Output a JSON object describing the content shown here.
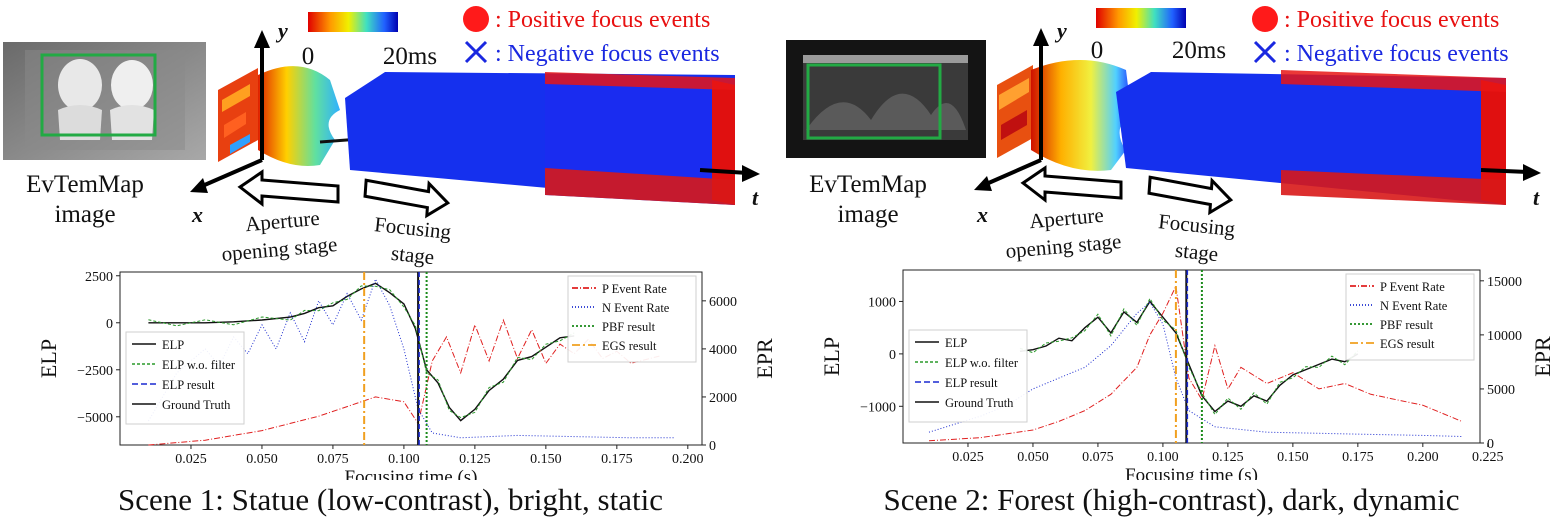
{
  "legend_top": {
    "positive": ": Positive focus events",
    "negative": ": Negative focus events",
    "colorbar_min": "0",
    "colorbar_max": "20ms",
    "pos_color": "#ff0000",
    "neg_color": "#1020e0"
  },
  "diagram": {
    "axis_y": "y",
    "axis_x": "x",
    "axis_t": "t",
    "evtemmap_label_1": "EvTemMap",
    "evtemmap_label_2": "image",
    "aperture_label_1": "Aperture",
    "aperture_label_2": "opening stage",
    "focusing_label_1": "Focusing",
    "focusing_label_2": "stage"
  },
  "scenes": [
    {
      "caption": "Scene 1: Statue (low-contrast), bright, static",
      "chart_data": {
        "type": "line",
        "xlabel": "Focusing time (s)",
        "ylabel_left": "ELP",
        "ylabel_right": "EPR",
        "xlim": [
          0.0,
          0.205
        ],
        "ylim_left": [
          -6500,
          2700
        ],
        "ylim_right": [
          0,
          7200
        ],
        "xticks": [
          "0.025",
          "0.050",
          "0.075",
          "0.100",
          "0.125",
          "0.150",
          "0.175",
          "0.200"
        ],
        "yticks_left": [
          "2500",
          "0",
          "−2500",
          "−5000"
        ],
        "yticks_right": [
          "6000",
          "4000",
          "2000",
          "0"
        ],
        "legend_left": [
          "ELP",
          "ELP w.o. filter",
          "ELP result",
          "Ground Truth"
        ],
        "legend_right": [
          "P Event Rate",
          "N Event Rate",
          "PBF result",
          "EGS result"
        ],
        "elp_result_x": 0.105,
        "ground_truth_x": 0.105,
        "pbf_result_x": 0.108,
        "egs_result_x": 0.086,
        "series": [
          {
            "name": "ELP",
            "x": [
              0.01,
              0.02,
              0.03,
              0.04,
              0.05,
              0.06,
              0.065,
              0.07,
              0.075,
              0.08,
              0.085,
              0.09,
              0.095,
              0.1,
              0.104,
              0.108,
              0.112,
              0.116,
              0.12,
              0.125,
              0.13,
              0.135,
              0.14,
              0.145,
              0.15,
              0.155,
              0.16
            ],
            "y": [
              0,
              0,
              0,
              50,
              150,
              300,
              500,
              800,
              900,
              1400,
              1800,
              2100,
              1600,
              1000,
              -300,
              -2500,
              -3200,
              -4500,
              -5200,
              -4600,
              -3600,
              -3000,
              -2000,
              -1800,
              -1300,
              -800,
              -700
            ]
          },
          {
            "name": "P Event Rate",
            "x": [
              0.01,
              0.03,
              0.05,
              0.06,
              0.07,
              0.08,
              0.09,
              0.1,
              0.105,
              0.11,
              0.115,
              0.12,
              0.125,
              0.13,
              0.135,
              0.14,
              0.145,
              0.15,
              0.155,
              0.16,
              0.165,
              0.17,
              0.175,
              0.18,
              0.19
            ],
            "y": [
              0,
              200,
              600,
              900,
              1200,
              1600,
              2000,
              1800,
              900,
              3500,
              4500,
              3000,
              5000,
              3500,
              5200,
              3600,
              4800,
              3400,
              4200,
              3800,
              4400,
              3600,
              3900,
              3400,
              3700
            ]
          },
          {
            "name": "N Event Rate",
            "x": [
              0.01,
              0.02,
              0.03,
              0.035,
              0.04,
              0.045,
              0.05,
              0.055,
              0.06,
              0.065,
              0.07,
              0.075,
              0.08,
              0.085,
              0.09,
              0.095,
              0.1,
              0.105,
              0.11,
              0.12,
              0.14,
              0.16,
              0.18,
              0.195
            ],
            "y": [
              1000,
              3000,
              4000,
              3300,
              4500,
              3800,
              5000,
              4000,
              5500,
              4300,
              6000,
              5000,
              6300,
              5200,
              6900,
              5800,
              4000,
              1500,
              500,
              300,
              400,
              350,
              300,
              300
            ]
          }
        ]
      }
    },
    {
      "caption": "Scene 2: Forest (high-contrast), dark, dynamic",
      "chart_data": {
        "type": "line",
        "xlabel": "Focusing time (s)",
        "ylabel_left": "ELP",
        "ylabel_right": "EPR",
        "xlim": [
          0.0,
          0.222
        ],
        "ylim_left": [
          -1700,
          1600
        ],
        "ylim_right": [
          0,
          16000
        ],
        "xticks": [
          "0.025",
          "0.050",
          "0.075",
          "0.100",
          "0.125",
          "0.150",
          "0.175",
          "0.200",
          "0.225"
        ],
        "yticks_left": [
          "1000",
          "0",
          "−1000"
        ],
        "yticks_right": [
          "15000",
          "10000",
          "5000",
          "0"
        ],
        "legend_left": [
          "ELP",
          "ELP w.o. filter",
          "ELP result",
          "Ground Truth"
        ],
        "legend_right": [
          "P Event Rate",
          "N Event Rate",
          "PBF result",
          "EGS result"
        ],
        "elp_result_x": 0.109,
        "ground_truth_x": 0.109,
        "pbf_result_x": 0.115,
        "egs_result_x": 0.105,
        "series": [
          {
            "name": "ELP",
            "x": [
              0.045,
              0.05,
              0.055,
              0.06,
              0.065,
              0.07,
              0.075,
              0.08,
              0.085,
              0.09,
              0.095,
              0.1,
              0.105,
              0.11,
              0.115,
              0.12,
              0.125,
              0.13,
              0.135,
              0.14,
              0.145,
              0.15,
              0.155,
              0.16,
              0.165,
              0.17,
              0.175
            ],
            "y": [
              50,
              80,
              150,
              300,
              250,
              500,
              700,
              400,
              800,
              600,
              1000,
              700,
              400,
              -200,
              -800,
              -1100,
              -900,
              -1000,
              -800,
              -900,
              -600,
              -400,
              -300,
              -200,
              -100,
              -150,
              0
            ]
          },
          {
            "name": "P Event Rate",
            "x": [
              0.01,
              0.03,
              0.05,
              0.06,
              0.07,
              0.08,
              0.09,
              0.095,
              0.1,
              0.105,
              0.11,
              0.115,
              0.12,
              0.125,
              0.13,
              0.14,
              0.15,
              0.16,
              0.17,
              0.18,
              0.19,
              0.2,
              0.215
            ],
            "y": [
              200,
              500,
              1200,
              2000,
              3000,
              4500,
              7000,
              10000,
              12000,
              14500,
              6000,
              4000,
              9000,
              5000,
              7000,
              5500,
              6500,
              5000,
              5500,
              4500,
              4000,
              3500,
              2000
            ]
          },
          {
            "name": "N Event Rate",
            "x": [
              0.01,
              0.03,
              0.04,
              0.05,
              0.06,
              0.07,
              0.08,
              0.085,
              0.09,
              0.095,
              0.1,
              0.105,
              0.11,
              0.12,
              0.14,
              0.16,
              0.18,
              0.2,
              0.215
            ],
            "y": [
              1000,
              2500,
              3500,
              5000,
              6000,
              7000,
              9000,
              10500,
              12000,
              13000,
              11000,
              6000,
              3000,
              1500,
              1000,
              900,
              800,
              700,
              600
            ]
          }
        ]
      }
    }
  ]
}
